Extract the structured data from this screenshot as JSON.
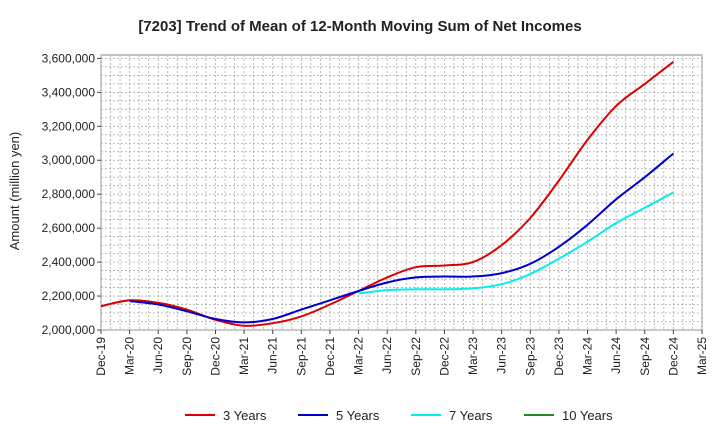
{
  "chart_data": {
    "type": "line",
    "title": "[7203]  Trend of Mean of 12-Month Moving Sum of Net Incomes",
    "ylabel": "Amount (million yen)",
    "xlabel": "",
    "x_ticks": [
      "Dec-19",
      "Mar-20",
      "Jun-20",
      "Sep-20",
      "Dec-20",
      "Mar-21",
      "Jun-21",
      "Sep-21",
      "Dec-21",
      "Mar-22",
      "Jun-22",
      "Sep-22",
      "Dec-22",
      "Mar-23",
      "Jun-23",
      "Sep-23",
      "Dec-23",
      "Mar-24",
      "Jun-24",
      "Sep-24",
      "Dec-24",
      "Mar-25"
    ],
    "y_ticks": [
      "2,000,000",
      "2,200,000",
      "2,400,000",
      "2,600,000",
      "2,800,000",
      "3,000,000",
      "3,200,000",
      "3,400,000",
      "3,600,000"
    ],
    "ylim": [
      2000000,
      3620000
    ],
    "grid": true,
    "legend_position": "bottom",
    "series": [
      {
        "name": "3 Years",
        "color": "#dd0000",
        "x": [
          "Dec-19",
          "Mar-20",
          "Jun-20",
          "Sep-20",
          "Dec-20",
          "Mar-21",
          "Jun-21",
          "Sep-21",
          "Dec-21",
          "Mar-22",
          "Jun-22",
          "Sep-22",
          "Dec-22",
          "Mar-23",
          "Jun-23",
          "Sep-23",
          "Dec-23",
          "Mar-24",
          "Jun-24",
          "Sep-24",
          "Dec-24"
        ],
        "values": [
          2140000,
          2175000,
          2160000,
          2120000,
          2060000,
          2025000,
          2040000,
          2080000,
          2150000,
          2230000,
          2310000,
          2370000,
          2380000,
          2400000,
          2500000,
          2660000,
          2880000,
          3120000,
          3320000,
          3450000,
          3580000
        ]
      },
      {
        "name": "5 Years",
        "color": "#0000cc",
        "x": [
          "Mar-20",
          "Jun-20",
          "Sep-20",
          "Dec-20",
          "Mar-21",
          "Jun-21",
          "Sep-21",
          "Dec-21",
          "Mar-22",
          "Jun-22",
          "Sep-22",
          "Dec-22",
          "Mar-23",
          "Jun-23",
          "Sep-23",
          "Dec-23",
          "Mar-24",
          "Jun-24",
          "Sep-24",
          "Dec-24"
        ],
        "values": [
          2170000,
          2150000,
          2110000,
          2065000,
          2045000,
          2065000,
          2120000,
          2175000,
          2230000,
          2280000,
          2310000,
          2315000,
          2315000,
          2335000,
          2390000,
          2490000,
          2620000,
          2770000,
          2900000,
          3040000
        ]
      },
      {
        "name": "7 Years",
        "color": "#00eeee",
        "x": [
          "Mar-22",
          "Jun-22",
          "Sep-22",
          "Dec-22",
          "Mar-23",
          "Jun-23",
          "Sep-23",
          "Dec-23",
          "Mar-24",
          "Jun-24",
          "Sep-24",
          "Dec-24"
        ],
        "values": [
          2215000,
          2235000,
          2240000,
          2240000,
          2245000,
          2270000,
          2330000,
          2420000,
          2520000,
          2630000,
          2720000,
          2810000
        ]
      },
      {
        "name": "10 Years",
        "color": "#228822",
        "x": [],
        "values": []
      }
    ]
  }
}
